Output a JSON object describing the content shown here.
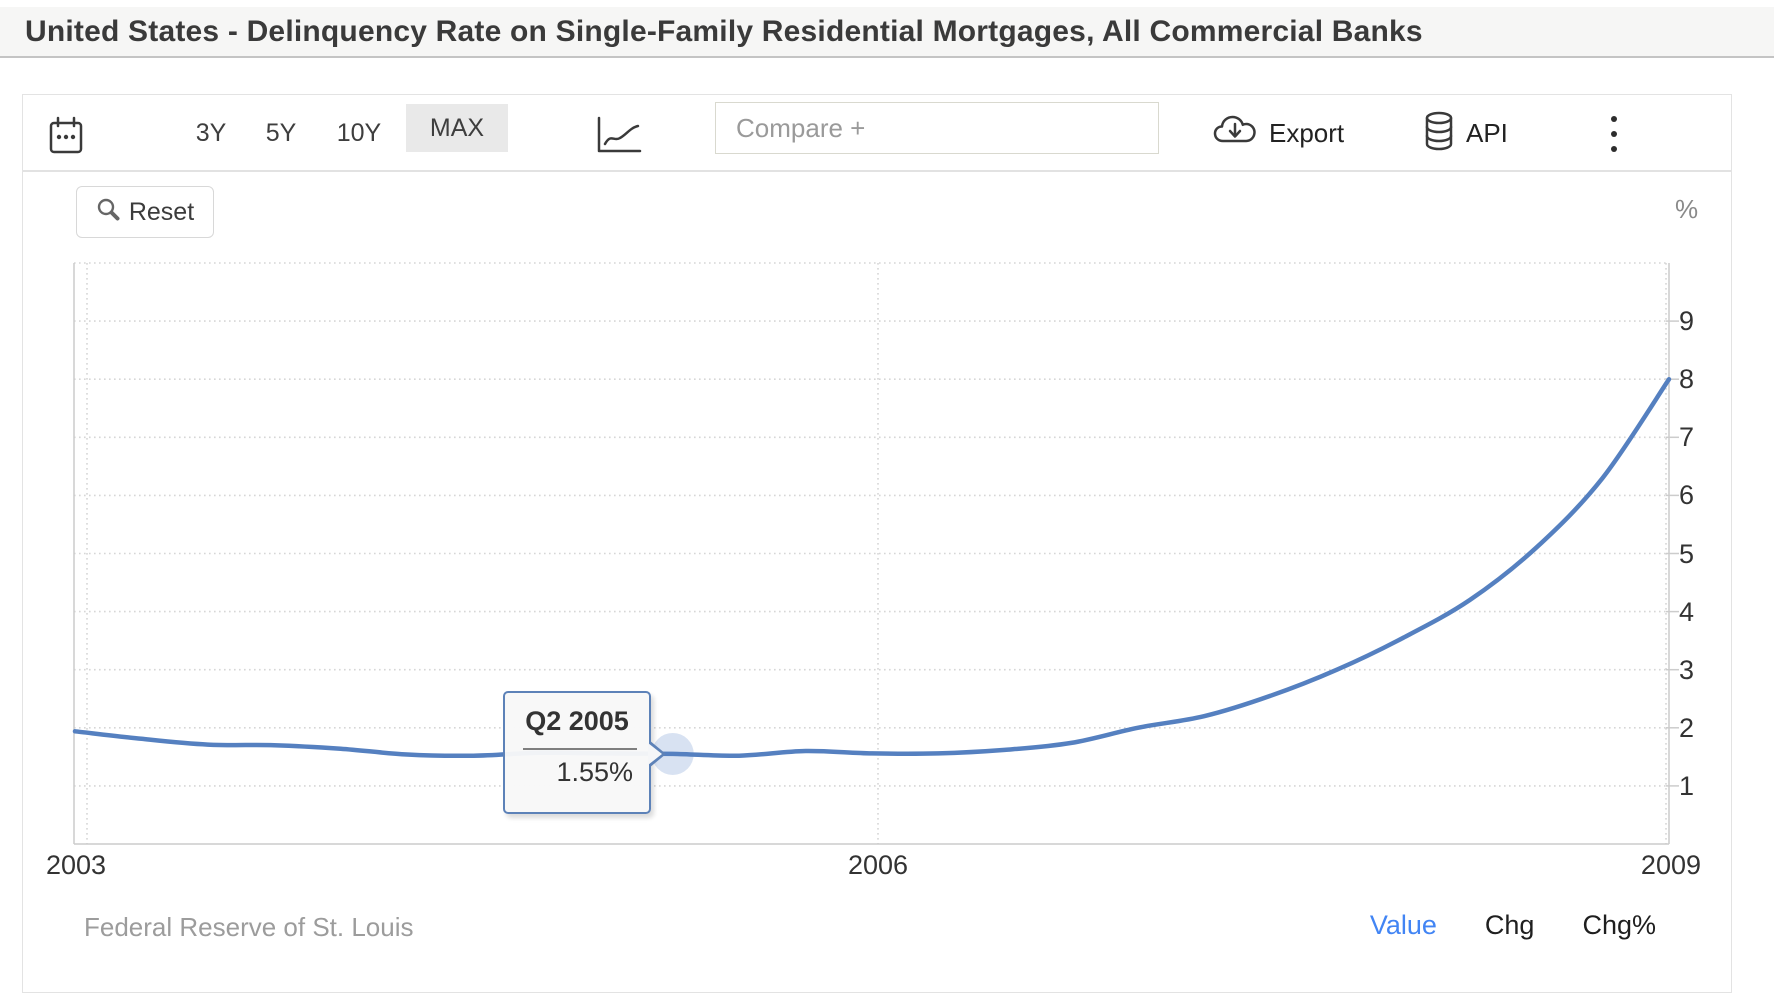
{
  "title": "United States - Delinquency Rate on Single-Family Residential Mortgages, All Commercial Banks",
  "toolbar": {
    "calendar_icon": "calendar",
    "periods": [
      "3Y",
      "5Y",
      "10Y",
      "MAX"
    ],
    "active_period": "MAX",
    "chart_type_icon": "line-chart",
    "compare_placeholder": "Compare +",
    "export_label": "Export",
    "api_label": "API",
    "menu_icon": "kebab-menu"
  },
  "chart": {
    "reset_label": "Reset",
    "unit_label": "%"
  },
  "tooltip": {
    "period": "Q2 2005",
    "value": "1.55%"
  },
  "footer": {
    "source": "Federal Reserve of St. Louis",
    "modes": [
      "Value",
      "Chg",
      "Chg%"
    ],
    "active_mode": "Value"
  },
  "colors": {
    "accent_blue": "#4285f4",
    "line_blue": "#5580c0",
    "halo_blue": "#c7d6ec",
    "grid_gray": "#d6d6d6",
    "axis_gray": "#cccccc"
  },
  "chart_data": {
    "type": "line",
    "title": "United States - Delinquency Rate on Single-Family Residential Mortgages, All Commercial Banks",
    "unit": "%",
    "xlabel": "",
    "ylabel": "%",
    "x_tick_labels": [
      "2003",
      "2006",
      "2009"
    ],
    "y_ticks": [
      1,
      2,
      3,
      4,
      5,
      6,
      7,
      8,
      9
    ],
    "ylim": [
      0,
      10
    ],
    "xlim_years": [
      2003,
      2009.0
    ],
    "grid": true,
    "legend": false,
    "series": [
      {
        "name": "Delinquency Rate on Single-Family Residential Mortgages",
        "quarters": [
          "2003 Q1",
          "2003 Q2",
          "2003 Q3",
          "2003 Q4",
          "2004 Q1",
          "2004 Q2",
          "2004 Q3",
          "2004 Q4",
          "2005 Q1",
          "2005 Q2",
          "2005 Q3",
          "2005 Q4",
          "2006 Q1",
          "2006 Q2",
          "2006 Q3",
          "2006 Q4",
          "2007 Q1",
          "2007 Q2",
          "2007 Q3",
          "2007 Q4",
          "2008 Q1",
          "2008 Q2",
          "2008 Q3",
          "2008 Q4",
          "2009 Q1"
        ],
        "values": [
          1.94,
          1.81,
          1.71,
          1.7,
          1.64,
          1.54,
          1.52,
          1.57,
          1.56,
          1.55,
          1.52,
          1.6,
          1.56,
          1.56,
          1.62,
          1.74,
          2.0,
          2.2,
          2.55,
          3.0,
          3.55,
          4.2,
          5.1,
          6.3,
          8.0
        ]
      }
    ],
    "highlight": {
      "index": 9,
      "label": "Q2 2005",
      "value": 1.55
    }
  }
}
